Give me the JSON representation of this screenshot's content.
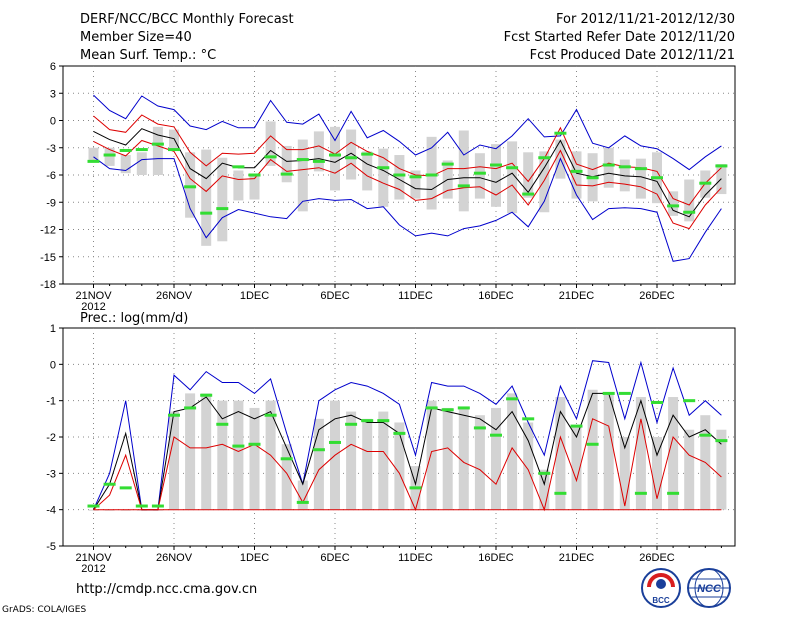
{
  "header": {
    "title": "DERF/NCC/BCC Monthly Forecast",
    "member_size": "Member Size=40",
    "period": "For 2012/11/21-2012/12/30",
    "refer_date": "Fcst Started Refer Date 2012/11/20",
    "produced_date": "Fcst Produced Date 2012/11/21"
  },
  "footer": {
    "url": "http://cmdp.ncc.cma.gov.cn",
    "credit": "GrADS: COLA/IGES",
    "logo_bcc": "BCC",
    "logo_ncc": "NCC"
  },
  "colors": {
    "max_min": "#0000cc",
    "spread": "#dd0000",
    "mean": "#000000",
    "box": "#d3d3d3",
    "member": "#33dd33",
    "grid": "#888888"
  },
  "chart_data": [
    {
      "type": "line",
      "title": "Mean Surf. Temp.: °C",
      "xlabel": "",
      "ylabel": "",
      "x_start": "2012-11-21",
      "num_days": 40,
      "ylim": [
        -18,
        6
      ],
      "yticks": [
        6,
        3,
        0,
        -3,
        -6,
        -9,
        -12,
        -15,
        -18
      ],
      "xticks": [
        {
          "day": 0,
          "label": "21NOV",
          "sub": "2012"
        },
        {
          "day": 5,
          "label": "26NOV"
        },
        {
          "day": 10,
          "label": "1DEC"
        },
        {
          "day": 15,
          "label": "6DEC"
        },
        {
          "day": 20,
          "label": "11DEC"
        },
        {
          "day": 25,
          "label": "16DEC"
        },
        {
          "day": 30,
          "label": "21DEC"
        },
        {
          "day": 35,
          "label": "26DEC"
        }
      ],
      "grid": true,
      "series": [
        {
          "name": "max",
          "color": "#0000cc",
          "values": [
            2.8,
            1.1,
            0.2,
            2.7,
            1.6,
            1.2,
            -0.6,
            -1.0,
            -0.1,
            -0.8,
            -0.8,
            2.2,
            -0.2,
            -0.4,
            0.7,
            -2.2,
            1.0,
            -1.9,
            -1.1,
            -2.3,
            -3.8,
            -3.0,
            -1.3,
            -3.8,
            -2.7,
            -3.1,
            -1.7,
            0.2,
            -1.8,
            -1.7,
            1.2,
            -2.5,
            -3.0,
            -1.7,
            -2.8,
            -3.1,
            -4.2,
            -5.4,
            -4.0,
            -2.8
          ]
        },
        {
          "name": "spread_high",
          "color": "#dd0000",
          "values": [
            0.5,
            -1.0,
            -1.3,
            0.6,
            -0.4,
            -0.7,
            -3.5,
            -5.0,
            -3.6,
            -3.7,
            -3.6,
            -1.7,
            -3.2,
            -3.2,
            -2.8,
            -3.7,
            -2.4,
            -3.4,
            -4.1,
            -5.3,
            -6.0,
            -6.1,
            -5.3,
            -5.3,
            -5.1,
            -5.3,
            -4.7,
            -6.7,
            -4.2,
            -0.8,
            -4.8,
            -5.4,
            -4.7,
            -5.1,
            -5.2,
            -5.6,
            -8.6,
            -9.3,
            -6.9,
            -5.2
          ]
        },
        {
          "name": "mean",
          "color": "#000000",
          "values": [
            -1.2,
            -2.1,
            -2.7,
            -0.9,
            -1.6,
            -2.0,
            -5.3,
            -6.4,
            -4.7,
            -5.2,
            -5.2,
            -3.3,
            -4.5,
            -4.4,
            -4.2,
            -4.6,
            -3.6,
            -4.8,
            -5.5,
            -6.5,
            -7.5,
            -7.6,
            -6.5,
            -6.3,
            -6.3,
            -6.8,
            -5.8,
            -7.9,
            -5.2,
            -2.2,
            -5.8,
            -6.2,
            -5.8,
            -6.1,
            -6.2,
            -6.7,
            -9.9,
            -10.6,
            -8.2,
            -6.4
          ]
        },
        {
          "name": "spread_low",
          "color": "#dd0000",
          "values": [
            -2.3,
            -3.2,
            -3.9,
            -2.2,
            -2.8,
            -3.4,
            -6.4,
            -7.8,
            -6.1,
            -6.5,
            -6.4,
            -4.3,
            -5.6,
            -5.4,
            -5.2,
            -5.8,
            -4.7,
            -6.1,
            -6.9,
            -7.6,
            -8.8,
            -8.6,
            -7.7,
            -7.4,
            -7.3,
            -8.2,
            -7.1,
            -9.3,
            -6.6,
            -3.3,
            -7.1,
            -7.2,
            -6.8,
            -7.0,
            -7.3,
            -8.1,
            -11.3,
            -11.9,
            -9.3,
            -7.4
          ]
        },
        {
          "name": "min",
          "color": "#0000cc",
          "values": [
            -4.0,
            -5.3,
            -5.5,
            -4.3,
            -4.2,
            -4.2,
            -9.7,
            -12.9,
            -10.7,
            -9.8,
            -10.2,
            -10.6,
            -10.8,
            -8.9,
            -8.6,
            -8.8,
            -8.7,
            -9.7,
            -9.5,
            -11.5,
            -12.7,
            -12.4,
            -12.7,
            -11.9,
            -11.6,
            -11.0,
            -10.1,
            -11.7,
            -8.9,
            -4.2,
            -8.2,
            -10.9,
            -9.7,
            -9.6,
            -9.7,
            -10.1,
            -15.5,
            -15.2,
            -12.3,
            -9.7
          ]
        }
      ],
      "boxes": {
        "high": [
          -3.0,
          -3.0,
          -3.8,
          -3.5,
          -0.7,
          -1.0,
          -3.5,
          -3.2,
          -4.1,
          -5.5,
          -6.0,
          -0.1,
          -2.8,
          -2.1,
          -1.2,
          -0.7,
          -1.0,
          -3.4,
          -3.1,
          -3.8,
          -5.5,
          -1.8,
          -4.4,
          -1.1,
          -3.6,
          -2.6,
          -2.3,
          -3.5,
          -3.4,
          -2.1,
          -3.4,
          -3.6,
          -3.0,
          -4.3,
          -4.2,
          -3.5,
          -7.8,
          -6.5,
          -5.5,
          -4.8
        ],
        "low": [
          -4.5,
          -5.0,
          -5.8,
          -6.0,
          -6.0,
          -3.1,
          -10.7,
          -13.8,
          -13.3,
          -8.8,
          -8.7,
          -5.0,
          -6.8,
          -10.0,
          -5.6,
          -7.7,
          -6.5,
          -7.7,
          -9.5,
          -8.7,
          -8.6,
          -9.8,
          -8.6,
          -10.0,
          -8.6,
          -9.5,
          -10.2,
          -8.5,
          -10.1,
          -6.4,
          -8.6,
          -8.9,
          -7.4,
          -7.8,
          -8.6,
          -9.1,
          -10.5,
          -11.1,
          -8.5,
          -8.1
        ]
      },
      "member_ticks": [
        -4.5,
        -3.8,
        -3.3,
        -3.2,
        -2.6,
        -3.2,
        -7.3,
        -10.2,
        -9.7,
        -5.1,
        -6.0,
        -4.0,
        -5.9,
        -4.3,
        -4.5,
        -3.8,
        -4.1,
        -3.7,
        -5.2,
        -6.0,
        -6.2,
        -6.0,
        -4.8,
        -7.2,
        -5.8,
        -4.9,
        -5.2,
        -8.1,
        -4.1,
        -1.4,
        -5.6,
        -6.3,
        -4.9,
        -5.1,
        -5.3,
        -6.3,
        -9.4,
        -10.1,
        -6.9,
        -5.0
      ]
    },
    {
      "type": "line",
      "title": "Prec.: log(mm/d)",
      "xlabel": "",
      "ylabel": "",
      "x_start": "2012-11-21",
      "num_days": 40,
      "ylim": [
        -5,
        1
      ],
      "yticks": [
        1,
        0,
        -1,
        -2,
        -3,
        -4,
        -5
      ],
      "xticks": [
        {
          "day": 0,
          "label": "21NOV",
          "sub": "2012"
        },
        {
          "day": 5,
          "label": "26NOV"
        },
        {
          "day": 10,
          "label": "1DEC"
        },
        {
          "day": 15,
          "label": "6DEC"
        },
        {
          "day": 20,
          "label": "11DEC"
        },
        {
          "day": 25,
          "label": "16DEC"
        },
        {
          "day": 30,
          "label": "21DEC"
        },
        {
          "day": 35,
          "label": "26DEC"
        }
      ],
      "grid": true,
      "series": [
        {
          "name": "max",
          "color": "#0000cc",
          "values": [
            -4.0,
            -3.0,
            -1.0,
            -4.0,
            -4.0,
            -0.3,
            -0.7,
            -0.2,
            -0.5,
            -0.5,
            -0.8,
            -0.4,
            -1.9,
            -3.3,
            -1.0,
            -0.7,
            -0.5,
            -0.6,
            -0.8,
            -1.1,
            -2.5,
            -0.5,
            -0.6,
            -0.6,
            -0.8,
            -1.1,
            -0.6,
            -1.6,
            -2.5,
            -0.6,
            -1.5,
            0.1,
            0.05,
            -1.5,
            0.05,
            -1.6,
            -0.1,
            -1.4,
            -1.0,
            -1.4
          ]
        },
        {
          "name": "mean",
          "color": "#000000",
          "values": [
            -4.0,
            -3.3,
            -1.9,
            -4.0,
            -4.0,
            -1.3,
            -1.2,
            -0.9,
            -1.5,
            -1.3,
            -1.5,
            -1.3,
            -2.3,
            -3.3,
            -1.8,
            -1.5,
            -1.4,
            -1.6,
            -1.6,
            -1.9,
            -3.3,
            -1.2,
            -1.3,
            -1.4,
            -1.5,
            -1.8,
            -1.3,
            -2.1,
            -3.3,
            -1.3,
            -2.0,
            -0.8,
            -0.8,
            -2.3,
            -1.0,
            -2.5,
            -1.4,
            -2.0,
            -1.8,
            -2.2
          ]
        },
        {
          "name": "spread_low",
          "color": "#dd0000",
          "values": [
            -4.0,
            -3.6,
            -2.5,
            -4.0,
            -4.0,
            -2.0,
            -2.3,
            -2.3,
            -2.2,
            -2.4,
            -2.2,
            -2.5,
            -3.0,
            -3.8,
            -2.9,
            -2.5,
            -2.2,
            -2.4,
            -2.4,
            -3.0,
            -4.0,
            -2.4,
            -2.3,
            -2.7,
            -2.9,
            -3.3,
            -2.3,
            -2.9,
            -4.0,
            -2.0,
            -3.2,
            -1.5,
            -1.7,
            -3.9,
            -1.5,
            -3.7,
            -2.0,
            -2.5,
            -2.7,
            -3.1
          ]
        },
        {
          "name": "floor",
          "color": "#dd0000",
          "values": [
            -4.0,
            -4.0,
            -4.0,
            -4.0,
            -4.0,
            -4.0,
            -4.0,
            -4.0,
            -4.0,
            -4.0,
            -4.0,
            -4.0,
            -4.0,
            -4.0,
            -4.0,
            -4.0,
            -4.0,
            -4.0,
            -4.0,
            -4.0,
            -4.0,
            -4.0,
            -4.0,
            -4.0,
            -4.0,
            -4.0,
            -4.0,
            -4.0,
            -4.0,
            -4.0,
            -4.0,
            -4.0,
            -4.0,
            -4.0,
            -4.0,
            -4.0,
            -4.0,
            -4.0,
            -4.0,
            -4.0
          ]
        }
      ],
      "boxes": {
        "high": [
          -4.0,
          -4.0,
          -4.0,
          -4.0,
          -4.0,
          -1.3,
          -0.8,
          -0.8,
          -1.0,
          -1.0,
          -1.2,
          -1.0,
          -2.2,
          -3.2,
          -1.5,
          -1.0,
          -1.3,
          -1.5,
          -1.3,
          -1.6,
          -2.8,
          -1.0,
          -1.2,
          -1.2,
          -1.4,
          -1.2,
          -0.8,
          -1.6,
          -2.9,
          -0.9,
          -1.7,
          -0.7,
          -0.8,
          -2.0,
          -0.9,
          -2.0,
          -0.9,
          -1.8,
          -1.4,
          -1.8
        ],
        "low": [
          -4.0,
          -4.0,
          -4.0,
          -4.0,
          -4.0,
          -4.0,
          -4.0,
          -4.0,
          -4.0,
          -4.0,
          -4.0,
          -4.0,
          -4.0,
          -4.0,
          -4.0,
          -4.0,
          -4.0,
          -4.0,
          -4.0,
          -4.0,
          -4.0,
          -4.0,
          -4.0,
          -4.0,
          -4.0,
          -4.0,
          -4.0,
          -4.0,
          -4.0,
          -4.0,
          -4.0,
          -4.0,
          -4.0,
          -4.0,
          -4.0,
          -4.0,
          -4.0,
          -4.0,
          -4.0,
          -4.0
        ]
      },
      "member_ticks": [
        -3.9,
        -3.3,
        -3.4,
        -3.9,
        -3.9,
        -1.4,
        -1.2,
        -0.85,
        -1.65,
        -2.25,
        -2.2,
        -1.4,
        -2.6,
        -3.8,
        -2.35,
        -2.15,
        -1.65,
        -1.55,
        -1.55,
        -1.9,
        -3.4,
        -1.2,
        -1.25,
        -1.2,
        -1.75,
        -1.95,
        -0.95,
        -1.5,
        -3.0,
        -3.55,
        -1.7,
        -2.2,
        -0.8,
        -0.8,
        -3.55,
        -1.05,
        -3.55,
        -1.0,
        -1.95,
        -2.1
      ]
    }
  ]
}
